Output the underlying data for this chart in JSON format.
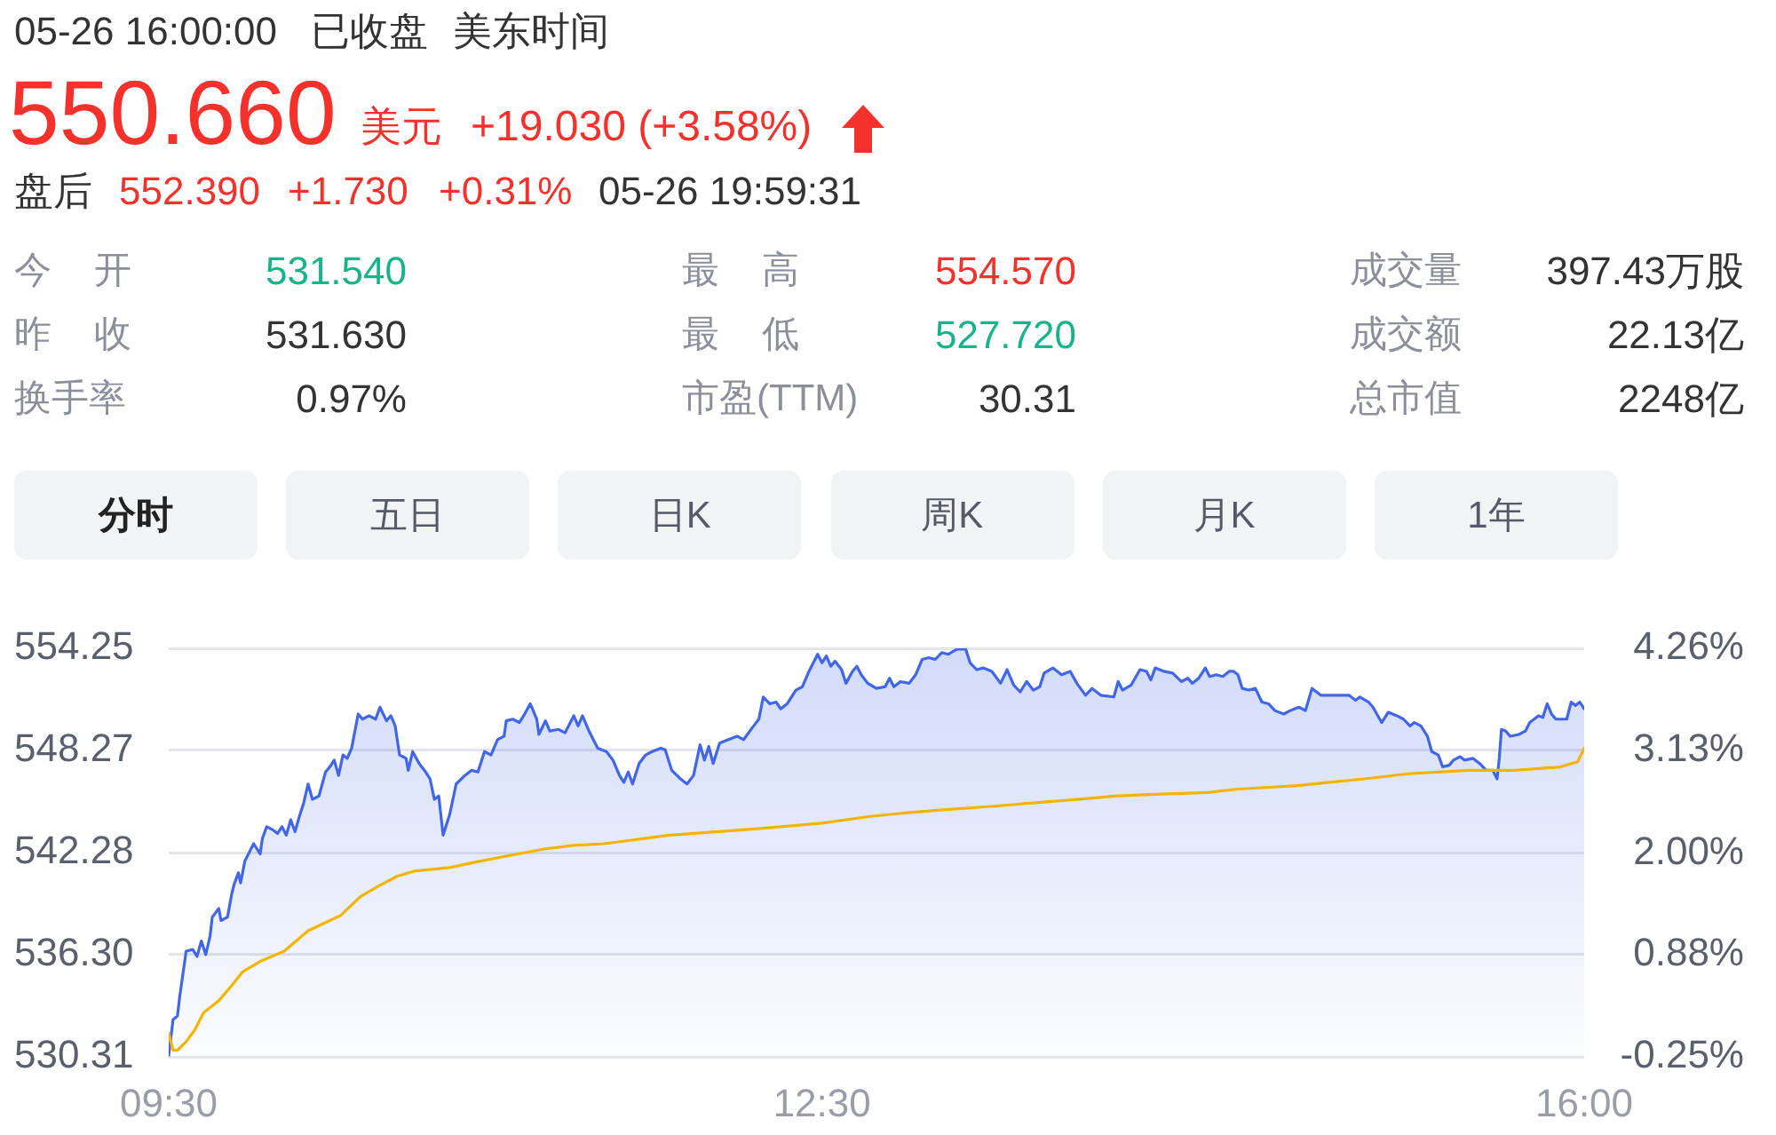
{
  "chart_data": {
    "type": "line",
    "annotations": [
      "05-26 16:00:00",
      "已收盘",
      "美东时间",
      "550.660",
      "美元",
      "+19.030 (+3.58%)",
      "盘后",
      "552.390",
      "+1.730",
      "+0.31%",
      "05-26 19:59:31",
      "今 开",
      "531.540",
      "昨 收",
      "531.630",
      "换手率",
      "0.97%",
      "最 高",
      "554.570",
      "最 低",
      "527.720",
      "市盈(TTM)",
      "30.31",
      "成交量",
      "397.43万股",
      "成交额",
      "22.13亿",
      "总市值",
      "2248亿",
      "分时",
      "五日",
      "日K",
      "周K",
      "月K",
      "1年"
    ],
    "xlim": [
      9.5,
      16
    ],
    "xticks": [
      {
        "value": 9.5,
        "label": "09:30"
      },
      {
        "value": 12.5,
        "label": "12:30"
      },
      {
        "value": 16,
        "label": "16:00"
      }
    ],
    "ylim": [
      530.31,
      554.25
    ],
    "yticks": [
      530.31,
      {
        "value": 536.3,
        "label": "536.30"
      },
      542.28,
      548.27,
      554.25
    ],
    "y2lim": [
      -0.25,
      4.26
    ],
    "y2ticks": [
      {
        "value": -0.25,
        "label": "-0.25%"
      },
      {
        "value": 0.88,
        "label": "0.88%"
      },
      {
        "value": 2,
        "label": "2.00%"
      },
      {
        "value": 3.13,
        "label": "3.13%"
      },
      {
        "value": 4.26,
        "label": "4.26%"
      }
    ],
    "grid": "y",
    "marker": "none",
    "series": [
      {
        "type": "area",
        "color": "#4166e8",
        "x": [
          9.5,
          9.52,
          9.54,
          9.55,
          9.58,
          9.61,
          9.63,
          9.65,
          9.67,
          9.69,
          9.7,
          9.73,
          9.74,
          9.77,
          9.79,
          9.8,
          9.82,
          9.83,
          9.85,
          9.87,
          9.89,
          9.92,
          9.93,
          9.95,
          9.98,
          10,
          10.02,
          10.04,
          10.06,
          10.08,
          10.1,
          10.12,
          10.14,
          10.16,
          10.19,
          10.22,
          10.24,
          10.26,
          10.28,
          10.3,
          10.32,
          10.34,
          10.37,
          10.39,
          10.42,
          10.45,
          10.47,
          10.5,
          10.52,
          10.54,
          10.56,
          10.59,
          10.6,
          10.62,
          10.65,
          10.68,
          10.7,
          10.72,
          10.74,
          10.76,
          10.79,
          10.82,
          10.86,
          10.89,
          10.92,
          10.95,
          10.98,
          11.01,
          11.04,
          11.05,
          11.08,
          11.11,
          11.13,
          11.16,
          11.19,
          11.2,
          11.23,
          11.25,
          11.29,
          11.32,
          11.36,
          11.38,
          11.4,
          11.43,
          11.47,
          11.51,
          11.54,
          11.57,
          11.59,
          11.61,
          11.63,
          11.66,
          11.69,
          11.72,
          11.76,
          11.78,
          11.81,
          11.85,
          11.88,
          11.91,
          11.94,
          11.96,
          11.98,
          12,
          12.03,
          12.07,
          12.11,
          12.14,
          12.18,
          12.21,
          12.23,
          12.26,
          12.29,
          12.31,
          12.34,
          12.38,
          12.41,
          12.44,
          12.48,
          12.5,
          12.52,
          12.54,
          12.56,
          12.59,
          12.61,
          12.64,
          12.66,
          12.68,
          12.71,
          12.75,
          12.79,
          12.81,
          12.83,
          12.86,
          12.9,
          12.93,
          12.96,
          12.99,
          13.02,
          13.05,
          13.08,
          13.12,
          13.16,
          13.18,
          13.21,
          13.24,
          13.28,
          13.32,
          13.35,
          13.38,
          13.41,
          13.44,
          13.47,
          13.5,
          13.52,
          13.56,
          13.6,
          13.64,
          13.67,
          13.71,
          13.74,
          13.78,
          13.84,
          13.86,
          13.88,
          13.92,
          13.96,
          13.99,
          14.01,
          14.03,
          14.07,
          14.11,
          14.15,
          14.18,
          14.2,
          14.23,
          14.26,
          14.28,
          14.31,
          14.34,
          14.37,
          14.39,
          14.41,
          14.43,
          14.46,
          14.49,
          14.52,
          14.55,
          14.58,
          14.62,
          14.65,
          14.69,
          14.72,
          14.75,
          14.79,
          14.84,
          14.92,
          14.95,
          14.97,
          15.01,
          15.03,
          15.07,
          15.1,
          15.14,
          15.17,
          15.2,
          15.22,
          15.25,
          15.28,
          15.3,
          15.33,
          15.35,
          15.38,
          15.4,
          15.43,
          15.45,
          15.49,
          15.52,
          15.55,
          15.58,
          15.6,
          15.61,
          15.62,
          15.64,
          15.66,
          15.7,
          15.73,
          15.75,
          15.79,
          15.81,
          15.83,
          15.85,
          15.87,
          15.92,
          15.94,
          15.96,
          15.98,
          16
        ],
        "values": [
          530.4,
          532.5,
          532.7,
          533.8,
          536.5,
          536.6,
          536.2,
          537.1,
          536.3,
          537.4,
          538.5,
          539,
          538.3,
          538.5,
          539.9,
          540.4,
          541.1,
          540.5,
          541.8,
          542.3,
          542.8,
          542.2,
          543.1,
          543.8,
          543.6,
          543.4,
          543.8,
          543.3,
          544.2,
          543.5,
          544.4,
          545.2,
          546.3,
          545.4,
          545.6,
          547,
          547.3,
          547.7,
          546.8,
          548,
          547.8,
          548.4,
          550.4,
          550.1,
          550.3,
          550.1,
          550.8,
          550,
          550.3,
          549.7,
          548,
          547.8,
          547.1,
          548.2,
          547.5,
          547,
          546.6,
          545.4,
          545.6,
          543.3,
          544.5,
          546.3,
          546.8,
          547.1,
          547,
          548.2,
          548,
          548.9,
          549.1,
          550,
          550.1,
          549.9,
          550.3,
          551,
          550.1,
          549.2,
          550,
          549.4,
          549.5,
          549.3,
          550.3,
          549.7,
          550.3,
          549.4,
          548.4,
          548.2,
          547.7,
          546.8,
          546.4,
          547,
          546.3,
          547.5,
          548,
          548.2,
          548.4,
          548.3,
          547.1,
          546.6,
          546.3,
          546.8,
          548.6,
          547.7,
          548.5,
          547.5,
          548.7,
          548.9,
          549.1,
          548.9,
          549.6,
          550.1,
          551.4,
          551,
          551.1,
          550.7,
          551,
          551.8,
          552,
          552.9,
          553.9,
          553.4,
          553.8,
          553.2,
          553.5,
          553,
          552.2,
          552.9,
          553.2,
          552.7,
          552.2,
          551.9,
          552,
          552.5,
          552,
          552.3,
          552.2,
          552.7,
          553.6,
          553.7,
          553.6,
          554,
          553.9,
          554.2,
          554.2,
          553.4,
          553,
          553.1,
          552.9,
          552.2,
          553,
          552.1,
          551.7,
          552.3,
          551.8,
          552,
          552.8,
          553.1,
          552.7,
          552.9,
          552.2,
          551.5,
          551.9,
          551.5,
          551.4,
          552.3,
          551.8,
          552.1,
          553,
          552.9,
          552.4,
          553.1,
          552.9,
          552.8,
          552.3,
          552.5,
          552.2,
          552.5,
          553.1,
          552.6,
          552.7,
          552.6,
          552.9,
          552.9,
          552.7,
          551.9,
          551.8,
          551.9,
          551.1,
          551,
          550.6,
          550.4,
          550.6,
          550.8,
          550.6,
          551.9,
          551.5,
          551.5,
          551.5,
          551.2,
          551.4,
          551.1,
          550.8,
          549.9,
          550.5,
          550.3,
          550.1,
          549.7,
          549.9,
          549.7,
          549.1,
          548.2,
          548,
          547.3,
          547.4,
          547.7,
          547.9,
          547.7,
          547.8,
          547.5,
          547.1,
          547.1,
          546.6,
          547.8,
          549.5,
          549.4,
          549.1,
          549.2,
          549.4,
          549.9,
          550.3,
          550.2,
          551,
          550.4,
          550.1,
          550.1,
          551.1,
          550.9,
          551.1,
          550.7
        ]
      },
      {
        "type": "line",
        "color": "#f5b400",
        "x": [
          9.5,
          9.52,
          9.54,
          9.58,
          9.62,
          9.66,
          9.73,
          9.79,
          9.84,
          9.92,
          10.03,
          10.14,
          10.19,
          10.29,
          10.38,
          10.46,
          10.55,
          10.63,
          10.79,
          10.9,
          11.06,
          11.23,
          11.36,
          11.5,
          11.8,
          12.01,
          12.23,
          12.5,
          12.72,
          12.88,
          13.07,
          13.29,
          13.48,
          13.67,
          13.86,
          14.03,
          14.27,
          14.41,
          14.68,
          14.83,
          14.99,
          15.19,
          15.47,
          15.68,
          15.89,
          15.97,
          16
        ],
        "values": [
          531.7,
          530.7,
          530.7,
          531.2,
          531.9,
          532.9,
          533.6,
          534.5,
          535.3,
          535.9,
          536.5,
          537.7,
          538,
          538.6,
          539.7,
          540.3,
          540.9,
          541.2,
          541.4,
          541.7,
          542.1,
          542.5,
          542.7,
          542.8,
          543.3,
          543.5,
          543.7,
          544,
          544.4,
          544.6,
          544.8,
          545,
          545.2,
          545.4,
          545.6,
          545.7,
          545.8,
          546,
          546.2,
          546.4,
          546.6,
          546.9,
          547.1,
          547.1,
          547.3,
          547.6,
          548.4
        ]
      }
    ]
  }
}
